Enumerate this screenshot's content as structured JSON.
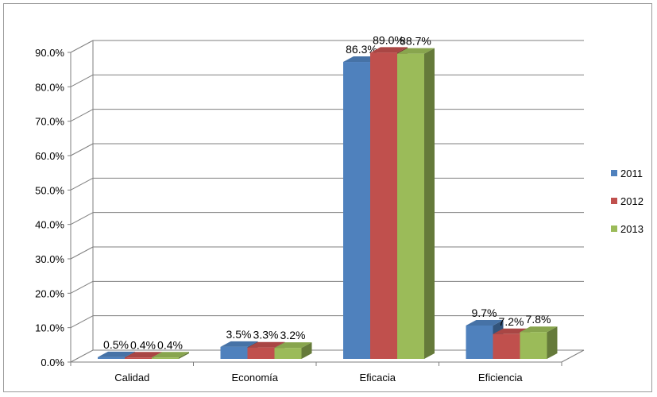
{
  "chart_data": {
    "type": "bar",
    "style": "3d-clustered-column",
    "categories": [
      "Calidad",
      "Economía",
      "Eficacia",
      "Eficiencia"
    ],
    "series": [
      {
        "name": "2011",
        "color": "#4F81BD",
        "values": [
          0.5,
          3.5,
          86.3,
          9.7
        ],
        "labels": [
          "0.5%",
          "3.5%",
          "86.3%",
          "9.7%"
        ]
      },
      {
        "name": "2012",
        "color": "#C0504D",
        "values": [
          0.4,
          3.3,
          89.0,
          7.2
        ],
        "labels": [
          "0.4%",
          "3.3%",
          "89.0%",
          "7.2%"
        ]
      },
      {
        "name": "2013",
        "color": "#9BBB59",
        "values": [
          0.4,
          3.2,
          88.7,
          7.8
        ],
        "labels": [
          "0.4%",
          "3.2%",
          "88.7%",
          "7.8%"
        ]
      }
    ],
    "y_ticks": [
      "0.0%",
      "10.0%",
      "20.0%",
      "30.0%",
      "40.0%",
      "50.0%",
      "60.0%",
      "70.0%",
      "80.0%",
      "90.0%"
    ],
    "ylim": [
      0,
      90
    ],
    "grid": true,
    "legend_position": "right",
    "title": "",
    "xlabel": "",
    "ylabel": ""
  }
}
